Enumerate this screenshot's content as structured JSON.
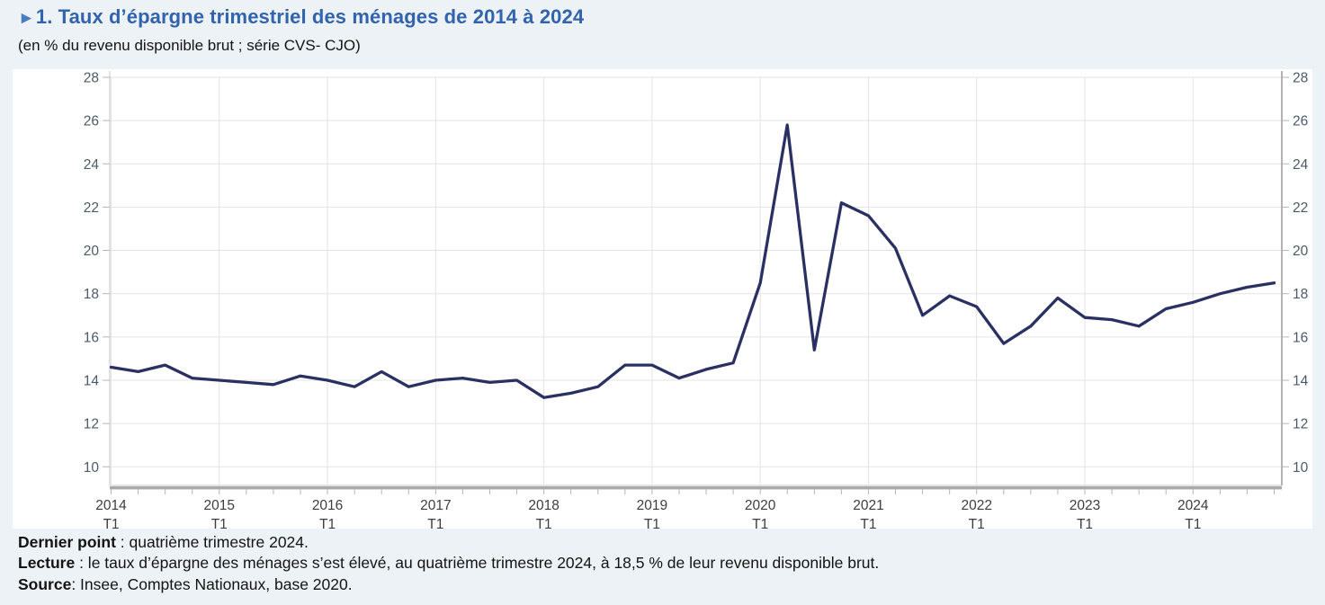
{
  "header": {
    "marker": "►",
    "title": "1. Taux d’épargne trimestriel des ménages de 2014 à 2024",
    "subtitle": "(en % du revenu disponible brut ; série CVS- CJO)"
  },
  "chart_data": {
    "type": "line",
    "title": "Taux d’épargne trimestriel des ménages de 2014 à 2024",
    "unit": "% du revenu disponible brut",
    "series": [
      {
        "name": "Taux d’épargne des ménages (CVS-CJO)",
        "start_period": "2014-T1",
        "end_period": "2024-T4",
        "frequency": "trimestrielle",
        "values": [
          14.6,
          14.4,
          14.7,
          14.1,
          14.0,
          13.9,
          13.8,
          14.2,
          14.0,
          13.7,
          14.4,
          13.7,
          14.0,
          14.1,
          13.9,
          14.0,
          13.2,
          13.4,
          13.7,
          14.7,
          14.7,
          14.1,
          14.5,
          14.8,
          18.5,
          25.8,
          15.4,
          22.2,
          21.6,
          20.1,
          17.0,
          17.9,
          17.4,
          15.7,
          16.5,
          17.8,
          16.9,
          16.8,
          16.5,
          17.3,
          17.6,
          18.0,
          18.3,
          18.5
        ]
      }
    ],
    "last_point": {
      "period": "2024-T4",
      "value": 18.5
    },
    "x_ticks": [
      {
        "year": "2014",
        "sub": "T1"
      },
      {
        "year": "2015",
        "sub": "T1"
      },
      {
        "year": "2016",
        "sub": "T1"
      },
      {
        "year": "2017",
        "sub": "T1"
      },
      {
        "year": "2018",
        "sub": "T1"
      },
      {
        "year": "2019",
        "sub": "T1"
      },
      {
        "year": "2020",
        "sub": "T1"
      },
      {
        "year": "2021",
        "sub": "T1"
      },
      {
        "year": "2022",
        "sub": "T1"
      },
      {
        "year": "2023",
        "sub": "T1"
      },
      {
        "year": "2024",
        "sub": "T1"
      }
    ],
    "y_ticks": [
      28,
      26,
      24,
      22,
      20,
      18,
      16,
      14,
      12,
      10
    ],
    "ylim": [
      9.1,
      28
    ],
    "y_axis_sides": [
      "left",
      "right"
    ],
    "grid": true,
    "legend": "none",
    "colors": {
      "line": "#2a3162",
      "grid": "#e3e3e3",
      "axis_thin": "#c4c4c4",
      "axis_thick": "#a9a9a9",
      "tick": "#b5b5b5",
      "y_label": "#4c5a68",
      "x_label": "#3e3e3e"
    }
  },
  "footer": {
    "lines": [
      {
        "label": "Dernier point",
        "rest": " : quatrième trimestre 2024."
      },
      {
        "label": "Lecture",
        "rest": " : le taux d’épargne des ménages s’est élevé, au quatrième trimestre 2024, à 18,5 % de leur revenu disponible brut."
      },
      {
        "label": "Source",
        "rest": ": Insee, Comptes Nationaux, base 2020."
      }
    ]
  }
}
